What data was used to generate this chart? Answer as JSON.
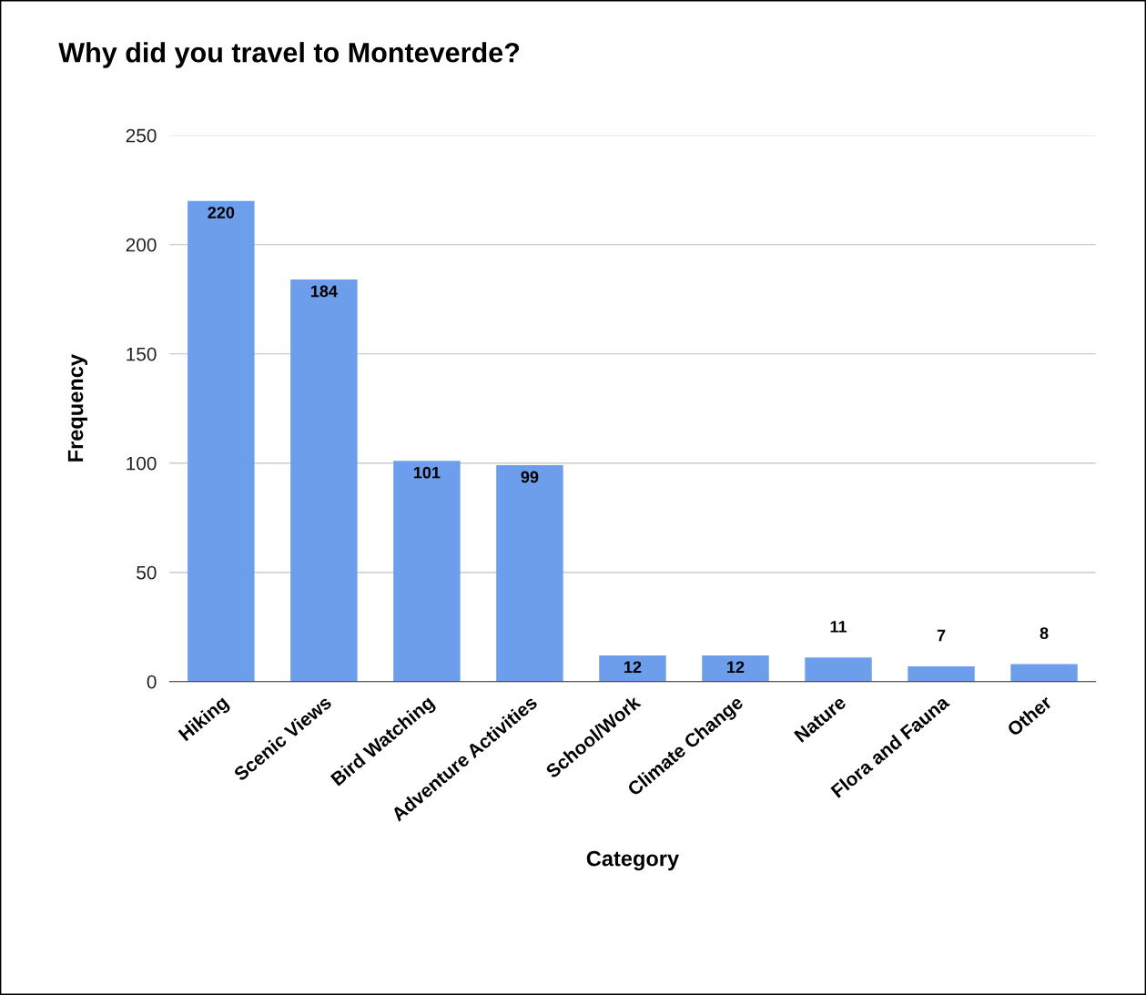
{
  "chart_data": {
    "type": "bar",
    "title": "Why did you travel to Monteverde?",
    "xlabel": "Category",
    "ylabel": "Frequency",
    "categories": [
      "Hiking",
      "Scenic Views",
      "Bird Watching",
      "Adventure Activities",
      "School/Work",
      "Climate Change",
      "Nature",
      "Flora and Fauna",
      "Other"
    ],
    "values": [
      220,
      184,
      101,
      99,
      12,
      12,
      11,
      7,
      8
    ],
    "color": "#6d9eeb",
    "ylim": [
      0,
      250
    ],
    "yticks": [
      0,
      50,
      100,
      150,
      200,
      250
    ],
    "grid": "y",
    "legend": false,
    "data_labels": true
  }
}
